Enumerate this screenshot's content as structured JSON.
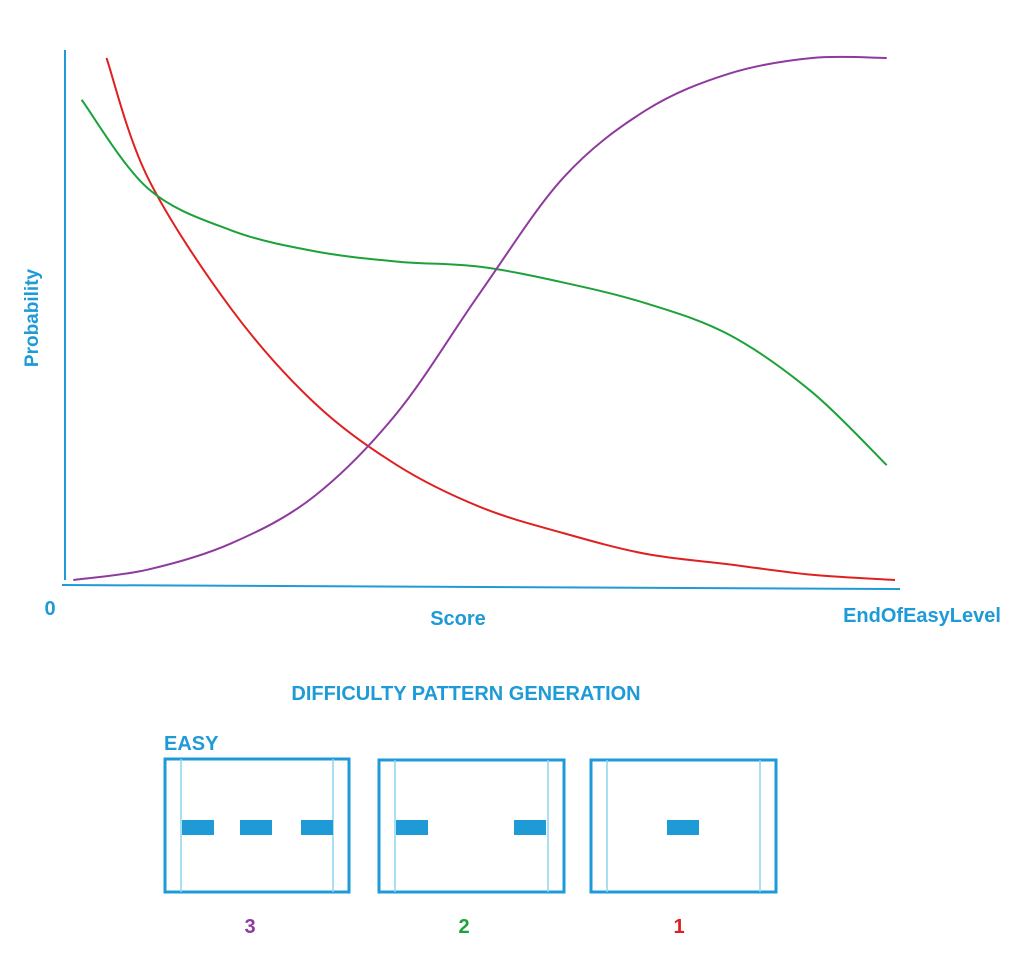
{
  "colors": {
    "axis": "#1E9BD7",
    "red": "#E02020",
    "green": "#1BA23A",
    "purple": "#8E3A9E",
    "block": "#1E9BD7"
  },
  "chart": {
    "y_label": "Probability",
    "x_label": "Score",
    "x_start_label": "0",
    "x_end_label": "EndOfEasyLevel"
  },
  "chart_data": {
    "type": "line",
    "xlabel": "Score",
    "ylabel": "Probability",
    "x_tick_labels": [
      "0",
      "EndOfEasyLevel"
    ],
    "xlim": [
      0,
      1
    ],
    "ylim": [
      0,
      1
    ],
    "grid": false,
    "series": [
      {
        "color": "red",
        "x": [
          0.05,
          0.1,
          0.2,
          0.3,
          0.4,
          0.5,
          0.6,
          0.7,
          0.8,
          0.9,
          1.0
        ],
        "y": [
          1.0,
          0.77,
          0.52,
          0.34,
          0.22,
          0.14,
          0.09,
          0.05,
          0.03,
          0.01,
          0.0
        ]
      },
      {
        "color": "green",
        "x": [
          0.02,
          0.1,
          0.2,
          0.3,
          0.4,
          0.5,
          0.6,
          0.7,
          0.8,
          0.9,
          0.99
        ],
        "y": [
          0.92,
          0.75,
          0.67,
          0.63,
          0.61,
          0.6,
          0.57,
          0.53,
          0.47,
          0.36,
          0.22
        ]
      },
      {
        "color": "purple",
        "x": [
          0.01,
          0.1,
          0.2,
          0.3,
          0.4,
          0.5,
          0.6,
          0.7,
          0.8,
          0.9,
          0.99
        ],
        "y": [
          0.0,
          0.02,
          0.07,
          0.16,
          0.32,
          0.55,
          0.77,
          0.9,
          0.97,
          1.0,
          1.0
        ]
      }
    ]
  },
  "section_title": "DIFFICULTY PATTERN GENERATION",
  "easy_label": "EASY",
  "patterns": [
    {
      "label": "3",
      "color": "purple",
      "blocks": 3
    },
    {
      "label": "2",
      "color": "green",
      "blocks": 2
    },
    {
      "label": "1",
      "color": "red",
      "blocks": 1
    }
  ]
}
